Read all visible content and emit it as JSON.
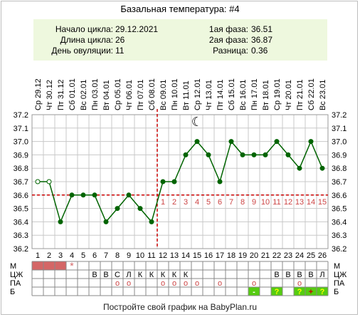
{
  "title": "Базальная температура: #4",
  "info": {
    "left": [
      {
        "label": "Начало цикла:",
        "value": "29.12.2021"
      },
      {
        "label": "Длина цикла:",
        "value": "26"
      },
      {
        "label": "День овуляции:",
        "value": "11"
      }
    ],
    "right": [
      {
        "label": "1ая фаза:",
        "value": "36.51"
      },
      {
        "label": "2ая фаза:",
        "value": "36.87"
      },
      {
        "label": "Разница:",
        "value": "0.36"
      }
    ]
  },
  "footer": "Постройте свой график на BabyPlan.ru",
  "colors": {
    "line": "#006400",
    "grid": "#c8c8c8",
    "coverline": "#cc0000",
    "menses": "#d46666",
    "info_bg": "#eef8de",
    "green_mark": "#55cc11",
    "phase_numbers": "#cc4444"
  },
  "chart_data": {
    "type": "line",
    "ylim": [
      36.2,
      37.2
    ],
    "yticks": [
      "37.2",
      "37.1",
      "37.0",
      "36.9",
      "36.8",
      "36.7",
      "36.6",
      "36.5",
      "36.4",
      "36.3",
      "36.2"
    ],
    "x": [
      1,
      2,
      3,
      4,
      5,
      6,
      7,
      8,
      9,
      10,
      11,
      12,
      13,
      14,
      15,
      16,
      17,
      18,
      19,
      20,
      21,
      22,
      23,
      24,
      25,
      26
    ],
    "dates": [
      "Ср 29.12",
      "Чт 30.12",
      "Пт 31.12",
      "Сб 01.01",
      "Вс 02.01",
      "Пн 03.01",
      "Вт 04.01",
      "Ср 05.01",
      "Чт 06.01",
      "Пт 07.01",
      "Сб 08.01",
      "Вс 09.01",
      "Пн 10.01",
      "Вт 11.01",
      "Ср 12.01",
      "Чт 13.01",
      "Пт 14.01",
      "Сб 15.01",
      "Вс 16.01",
      "Пн 17.01",
      "Вт 18.01",
      "Ср 19.01",
      "Чт 20.01",
      "Пт 21.01",
      "Сб 22.01",
      "Вс 23.01"
    ],
    "values": [
      36.7,
      36.7,
      36.4,
      36.6,
      36.6,
      36.6,
      36.4,
      36.5,
      36.6,
      36.5,
      36.4,
      36.7,
      36.7,
      36.9,
      37.0,
      36.9,
      36.7,
      37.0,
      36.9,
      36.9,
      36.9,
      37.0,
      36.9,
      36.8,
      37.0,
      36.8
    ],
    "open_points": [
      1,
      2
    ],
    "coverline": 36.6,
    "ovulation_day": 11,
    "moon_day": 15,
    "phase2_labels": [
      "1",
      "2",
      "3",
      "4",
      "5",
      "6",
      "7",
      "8",
      "9",
      "10",
      "11",
      "12",
      "13",
      "14",
      "15"
    ],
    "rows": {
      "labels": [
        "М",
        "ЦЖ",
        "ПА",
        "Б"
      ],
      "menses_days": [
        1,
        2,
        3
      ],
      "menses_star_day": 4,
      "mucus": [
        "",
        "",
        "",
        "",
        "",
        "В",
        "В",
        "С",
        "Л",
        "К",
        "К",
        "К",
        "К",
        "К",
        "",
        "",
        "",
        "",
        "",
        "",
        "",
        "В",
        "В",
        "В",
        "В",
        "Л"
      ],
      "pa_days": [
        8,
        9,
        12,
        13,
        14,
        15,
        17,
        20,
        24
      ],
      "pa_symbol": "o",
      "tests": {
        "20": "-",
        "22": "?",
        "24": "?",
        "25": "+",
        "26": "?"
      }
    }
  }
}
